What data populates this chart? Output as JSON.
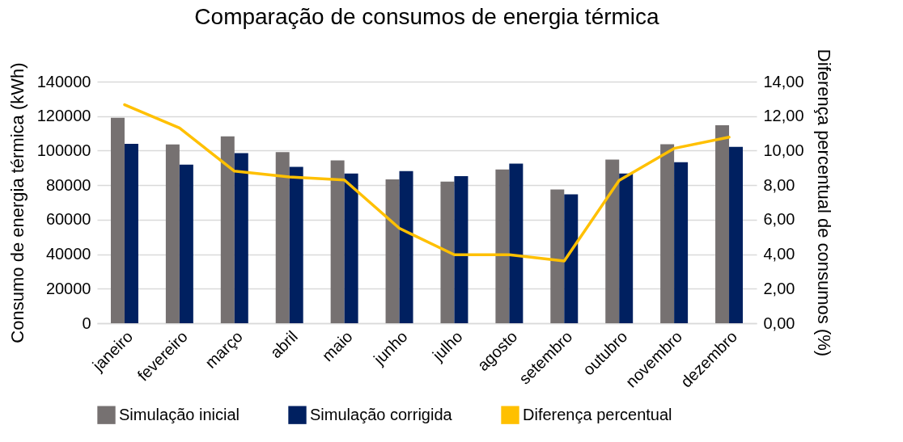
{
  "chart_data": {
    "type": "bar",
    "title": "Comparação de consumos de energia térmica",
    "ylabel": "Consumo de energia térmica (kWh)",
    "y2label": "Diferença percentual de consumos (%)",
    "categories": [
      "janeiro",
      "fevereiro",
      "março",
      "abril",
      "maio",
      "junho",
      "julho",
      "agosto",
      "setembro",
      "outubro",
      "novembro",
      "dezembro"
    ],
    "series": [
      {
        "name": "Simulação inicial",
        "color": "#767171",
        "values": [
          119000,
          103600,
          108300,
          99100,
          94400,
          83400,
          82000,
          89100,
          77500,
          94800,
          103700,
          114700
        ]
      },
      {
        "name": "Simulação corrigida",
        "color": "#002060",
        "values": [
          104000,
          91900,
          98600,
          90600,
          86700,
          88100,
          85200,
          92500,
          74700,
          86700,
          93300,
          102200
        ]
      },
      {
        "name": "Diferença percentual",
        "type": "line",
        "axis": "y2",
        "color": "#ffc000",
        "values": [
          12.66,
          11.31,
          8.81,
          8.48,
          8.3,
          5.5,
          3.97,
          3.97,
          3.61,
          8.28,
          10.13,
          10.78
        ]
      }
    ],
    "ylim": [
      0,
      140000
    ],
    "yticks": [
      0,
      20000,
      40000,
      60000,
      80000,
      100000,
      120000,
      140000
    ],
    "y2lim": [
      0,
      14
    ],
    "y2ticks": [
      {
        "value": 0,
        "label": "0,00"
      },
      {
        "value": 2,
        "label": "2,00"
      },
      {
        "value": 4,
        "label": "4,00"
      },
      {
        "value": 6,
        "label": "6,00"
      },
      {
        "value": 8,
        "label": "8,00"
      },
      {
        "value": 10,
        "label": "10,00"
      },
      {
        "value": 12,
        "label": "12,00"
      },
      {
        "value": 14,
        "label": "14,00"
      }
    ],
    "grid": "y",
    "legend": "bottom",
    "line_style": "solid"
  }
}
